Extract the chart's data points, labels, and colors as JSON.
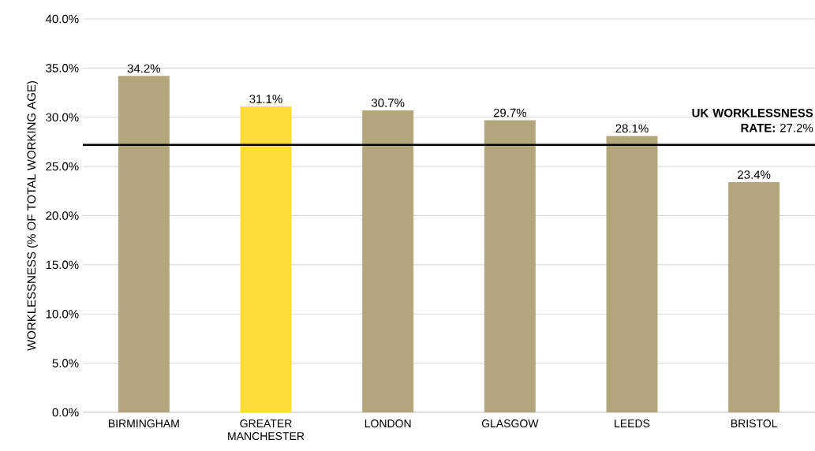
{
  "chart_data": {
    "type": "bar",
    "ylabel": "WORKLESSNESS (% OF TOTAL WORKING AGE)",
    "categories": [
      "BIRMINGHAM",
      "GREATER MANCHESTER",
      "LONDON",
      "GLASGOW",
      "LEEDS",
      "BRISTOL"
    ],
    "values": [
      34.2,
      31.1,
      30.7,
      29.7,
      28.1,
      23.4
    ],
    "value_labels": [
      "34.2%",
      "31.1%",
      "30.7%",
      "29.7%",
      "28.1%",
      "23.4%"
    ],
    "colors": [
      "#b3a57c",
      "#fedd3a",
      "#b3a57c",
      "#b3a57c",
      "#b3a57c",
      "#b3a57c"
    ],
    "ylim": [
      0,
      40
    ],
    "yticks": [
      {
        "value": 0,
        "label": "0.0%"
      },
      {
        "value": 5,
        "label": "5.0%"
      },
      {
        "value": 10,
        "label": "10.0%"
      },
      {
        "value": 15,
        "label": "15.0%"
      },
      {
        "value": 20,
        "label": "20.0%"
      },
      {
        "value": 25,
        "label": "25.0%"
      },
      {
        "value": 30,
        "label": "30.0%"
      },
      {
        "value": 35,
        "label": "35.0%"
      },
      {
        "value": 40,
        "label": "40.0%"
      }
    ],
    "grid": "y",
    "ref_lines": [
      {
        "axis": "y",
        "value": 27.2,
        "label": "**UK WORKLESSNESS RATE:** 27.2%",
        "color": "#000000"
      }
    ]
  }
}
